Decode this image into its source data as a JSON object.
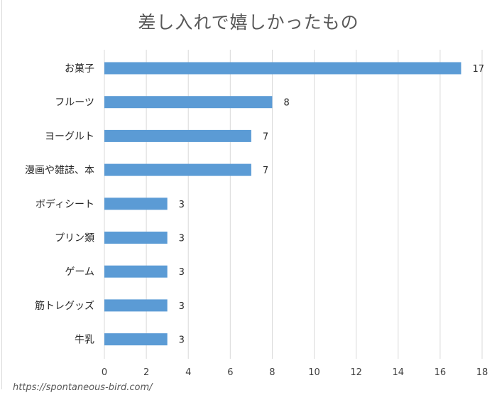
{
  "watermark": "https://spontaneous-bird.com/",
  "chart_data": {
    "type": "bar",
    "orientation": "horizontal",
    "title": "差し入れで嬉しかったもの",
    "categories": [
      "お菓子",
      "フルーツ",
      "ヨーグルト",
      "漫画や雑誌、本",
      "ボディシート",
      "プリン類",
      "ゲーム",
      "筋トレグッズ",
      "牛乳"
    ],
    "values": [
      17,
      8,
      7,
      7,
      3,
      3,
      3,
      3,
      3
    ],
    "xlim": [
      0,
      18
    ],
    "xticks": [
      0,
      2,
      4,
      6,
      8,
      10,
      12,
      14,
      16,
      18
    ],
    "grid": true,
    "bar_color": "#5b9bd5",
    "grid_color": "#d9d9d9"
  }
}
